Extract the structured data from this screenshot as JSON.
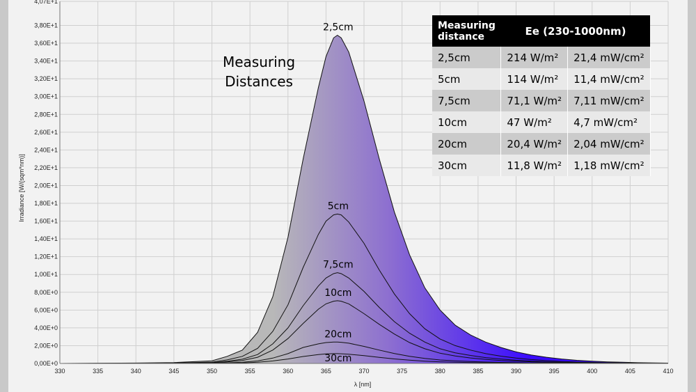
{
  "chart_data": {
    "type": "area",
    "title": "",
    "xlabel": "λ [nm]",
    "ylabel": "Irradiance [W/(sqm*nm)]",
    "xlim": [
      330,
      410
    ],
    "ylim": [
      0,
      40.7
    ],
    "x_ticks": [
      "330",
      "335",
      "340",
      "345",
      "350",
      "355",
      "360",
      "365",
      "370",
      "375",
      "380",
      "385",
      "390",
      "395",
      "400",
      "405",
      "410"
    ],
    "y_ticks": [
      "0,00E+0",
      "2,00E+0",
      "4,00E+0",
      "6,00E+0",
      "8,00E+0",
      "1,00E+1",
      "1,20E+1",
      "1,40E+1",
      "1,60E+1",
      "1,80E+1",
      "2,00E+1",
      "2,20E+1",
      "2,40E+1",
      "2,60E+1",
      "2,80E+1",
      "3,00E+1",
      "3,20E+1",
      "3,40E+1",
      "3,60E+1",
      "3,80E+1",
      "4,07E+1"
    ],
    "grid": true,
    "x": [
      330,
      340,
      345,
      350,
      352,
      354,
      356,
      358,
      360,
      362,
      364,
      365,
      366,
      366.5,
      367,
      368,
      370,
      372,
      374,
      376,
      378,
      380,
      382,
      384,
      386,
      388,
      390,
      392,
      394,
      396,
      398,
      400,
      402,
      404,
      406,
      410
    ],
    "series": [
      {
        "name": "2,5cm",
        "values": [
          0,
          0.05,
          0.1,
          0.3,
          0.8,
          1.5,
          3.5,
          7.5,
          14.2,
          23.0,
          31.0,
          34.5,
          36.6,
          36.9,
          36.6,
          35.0,
          29.5,
          23.0,
          17.0,
          12.2,
          8.5,
          6.0,
          4.3,
          3.2,
          2.4,
          1.8,
          1.3,
          0.95,
          0.7,
          0.5,
          0.35,
          0.25,
          0.18,
          0.13,
          0.09,
          0.04
        ]
      },
      {
        "name": "5cm",
        "values": [
          0,
          0.02,
          0.05,
          0.15,
          0.4,
          0.8,
          1.7,
          3.6,
          6.6,
          10.8,
          14.5,
          16.0,
          16.7,
          16.8,
          16.7,
          15.9,
          13.5,
          10.5,
          7.8,
          5.6,
          3.9,
          2.75,
          2.0,
          1.5,
          1.1,
          0.82,
          0.6,
          0.44,
          0.32,
          0.23,
          0.16,
          0.12,
          0.08,
          0.06,
          0.04,
          0.02
        ]
      },
      {
        "name": "7,5cm",
        "values": [
          0,
          0.01,
          0.03,
          0.09,
          0.24,
          0.48,
          1.0,
          2.2,
          4.0,
          6.5,
          8.7,
          9.6,
          10.1,
          10.2,
          10.1,
          9.6,
          8.1,
          6.3,
          4.7,
          3.4,
          2.4,
          1.65,
          1.2,
          0.9,
          0.66,
          0.5,
          0.36,
          0.27,
          0.19,
          0.14,
          0.1,
          0.07,
          0.05,
          0.035,
          0.025,
          0.01
        ]
      },
      {
        "name": "10cm",
        "values": [
          0,
          0.01,
          0.02,
          0.07,
          0.17,
          0.34,
          0.7,
          1.5,
          2.8,
          4.5,
          6.1,
          6.7,
          7.0,
          7.05,
          7.0,
          6.7,
          5.6,
          4.4,
          3.3,
          2.35,
          1.65,
          1.15,
          0.84,
          0.62,
          0.46,
          0.34,
          0.25,
          0.18,
          0.13,
          0.1,
          0.07,
          0.05,
          0.035,
          0.025,
          0.017,
          0.008
        ]
      },
      {
        "name": "20cm",
        "values": [
          0,
          0.0,
          0.01,
          0.03,
          0.07,
          0.13,
          0.28,
          0.6,
          1.1,
          1.8,
          2.2,
          2.35,
          2.4,
          2.4,
          2.38,
          2.28,
          1.92,
          1.5,
          1.12,
          0.8,
          0.56,
          0.39,
          0.29,
          0.21,
          0.16,
          0.12,
          0.085,
          0.062,
          0.045,
          0.033,
          0.024,
          0.017,
          0.012,
          0.009,
          0.006,
          0.003
        ]
      },
      {
        "name": "30cm",
        "values": [
          0,
          0.0,
          0.0,
          0.01,
          0.03,
          0.06,
          0.13,
          0.28,
          0.5,
          0.78,
          1.0,
          1.08,
          1.1,
          1.1,
          1.09,
          1.04,
          0.88,
          0.69,
          0.51,
          0.37,
          0.26,
          0.18,
          0.13,
          0.1,
          0.07,
          0.055,
          0.04,
          0.028,
          0.02,
          0.015,
          0.011,
          0.008,
          0.006,
          0.004,
          0.003,
          0.001
        ]
      }
    ]
  },
  "annotation": "Measuring\nDistances",
  "table": {
    "header_col1": "Measuring\ndistance",
    "header_col2": "Ee  (230-1000nm)",
    "rows": [
      [
        "2,5cm",
        "214 W/m²",
        "21,4 mW/cm²"
      ],
      [
        "5cm",
        "114 W/m²",
        "11,4 mW/cm²"
      ],
      [
        "7,5cm",
        "71,1 W/m²",
        "7,11 mW/cm²"
      ],
      [
        "10cm",
        "47 W/m²",
        "4,7 mW/cm²"
      ],
      [
        "20cm",
        "20,4 W/m²",
        "2,04 mW/cm²"
      ],
      [
        "30cm",
        "11,8 W/m²",
        "1,18 mW/cm²"
      ]
    ]
  },
  "colors": {
    "gradient_start": "#b8b8b8",
    "gradient_mid": "#8d6fd0",
    "gradient_end": "#3a0bff",
    "grid": "#cfcfcf",
    "background": "#f2f2f2"
  }
}
